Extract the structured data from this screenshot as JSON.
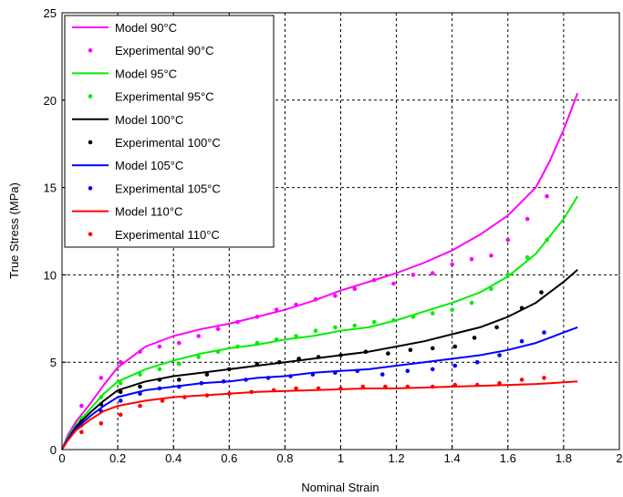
{
  "chart_data": {
    "type": "line",
    "title": "",
    "xlabel": "Nominal Strain",
    "ylabel": "True Stress (MPa)",
    "xlim": [
      0,
      2
    ],
    "ylim": [
      0,
      25
    ],
    "xticks": [
      "0",
      "0.2",
      "0.4",
      "0.6",
      "0.8",
      "1",
      "1.2",
      "1.4",
      "1.6",
      "1.8",
      "2"
    ],
    "yticks": [
      "0",
      "5",
      "10",
      "15",
      "20",
      "25"
    ],
    "grid": true,
    "legend_position": "top-left",
    "series": [
      {
        "name": "Model 90°C",
        "kind": "line",
        "color": "#ff00ff",
        "x": [
          0,
          0.02,
          0.05,
          0.1,
          0.15,
          0.2,
          0.3,
          0.4,
          0.5,
          0.6,
          0.7,
          0.8,
          0.9,
          1.0,
          1.1,
          1.2,
          1.3,
          1.4,
          1.5,
          1.6,
          1.7,
          1.75,
          1.8,
          1.85
        ],
        "y": [
          0,
          0.8,
          1.6,
          2.6,
          3.7,
          4.7,
          5.9,
          6.5,
          6.9,
          7.2,
          7.6,
          8.0,
          8.5,
          9.1,
          9.6,
          10.1,
          10.7,
          11.4,
          12.3,
          13.4,
          15.0,
          16.5,
          18.3,
          20.4
        ]
      },
      {
        "name": "Experimental 90°C",
        "kind": "scatter",
        "color": "#ff00ff",
        "x": [
          0.07,
          0.14,
          0.21,
          0.28,
          0.35,
          0.42,
          0.49,
          0.56,
          0.63,
          0.7,
          0.77,
          0.84,
          0.91,
          0.98,
          1.05,
          1.12,
          1.19,
          1.26,
          1.33,
          1.4,
          1.47,
          1.54,
          1.6,
          1.67,
          1.74
        ],
        "y": [
          2.5,
          4.1,
          5.0,
          5.6,
          5.9,
          6.1,
          6.5,
          6.9,
          7.3,
          7.6,
          8.0,
          8.3,
          8.6,
          8.8,
          9.2,
          9.7,
          9.5,
          10.0,
          10.1,
          10.6,
          10.9,
          11.1,
          12.0,
          13.2,
          14.5
        ]
      },
      {
        "name": "Model 95°C",
        "kind": "line",
        "color": "#00ee00",
        "x": [
          0,
          0.02,
          0.05,
          0.1,
          0.15,
          0.2,
          0.3,
          0.4,
          0.5,
          0.6,
          0.7,
          0.8,
          0.9,
          1.0,
          1.1,
          1.2,
          1.3,
          1.4,
          1.5,
          1.6,
          1.7,
          1.75,
          1.8,
          1.85
        ],
        "y": [
          0,
          0.7,
          1.4,
          2.3,
          3.2,
          3.9,
          4.6,
          5.1,
          5.5,
          5.8,
          6.0,
          6.3,
          6.5,
          6.8,
          7.0,
          7.4,
          7.9,
          8.4,
          9.0,
          9.9,
          11.2,
          12.2,
          13.2,
          14.5
        ]
      },
      {
        "name": "Experimental 95°C",
        "kind": "scatter",
        "color": "#00ee00",
        "x": [
          0.07,
          0.14,
          0.21,
          0.28,
          0.35,
          0.42,
          0.49,
          0.56,
          0.63,
          0.7,
          0.77,
          0.84,
          0.91,
          0.98,
          1.05,
          1.12,
          1.19,
          1.26,
          1.33,
          1.4,
          1.47,
          1.54,
          1.6,
          1.67,
          1.74
        ],
        "y": [
          1.8,
          3.0,
          3.8,
          4.3,
          4.6,
          4.9,
          5.3,
          5.6,
          5.9,
          6.1,
          6.3,
          6.5,
          6.8,
          7.0,
          7.1,
          7.3,
          7.4,
          7.6,
          7.8,
          8.0,
          8.4,
          9.2,
          10.0,
          11.0,
          12.0
        ]
      },
      {
        "name": "Model 100°C",
        "kind": "line",
        "color": "#000000",
        "x": [
          0,
          0.02,
          0.05,
          0.1,
          0.15,
          0.2,
          0.3,
          0.4,
          0.5,
          0.6,
          0.7,
          0.8,
          0.9,
          1.0,
          1.1,
          1.2,
          1.3,
          1.4,
          1.5,
          1.6,
          1.7,
          1.75,
          1.8,
          1.85
        ],
        "y": [
          0,
          0.6,
          1.3,
          2.1,
          2.8,
          3.4,
          3.9,
          4.2,
          4.4,
          4.6,
          4.8,
          5.0,
          5.2,
          5.4,
          5.6,
          5.9,
          6.2,
          6.6,
          7.0,
          7.6,
          8.4,
          9.0,
          9.6,
          10.3
        ]
      },
      {
        "name": "Experimental 100°C",
        "kind": "scatter",
        "color": "#000000",
        "x": [
          0.07,
          0.14,
          0.21,
          0.28,
          0.35,
          0.42,
          0.52,
          0.6,
          0.7,
          0.78,
          0.85,
          0.92,
          1.0,
          1.09,
          1.17,
          1.25,
          1.33,
          1.41,
          1.48,
          1.56,
          1.65,
          1.72
        ],
        "y": [
          1.6,
          2.6,
          3.3,
          3.6,
          4.0,
          4.0,
          4.3,
          4.6,
          4.9,
          5.0,
          5.2,
          5.3,
          5.4,
          5.6,
          5.5,
          5.7,
          5.8,
          5.9,
          6.4,
          7.0,
          8.1,
          9.0
        ]
      },
      {
        "name": "Model 105°C",
        "kind": "line",
        "color": "#0000ff",
        "x": [
          0,
          0.02,
          0.05,
          0.1,
          0.15,
          0.2,
          0.3,
          0.4,
          0.5,
          0.6,
          0.7,
          0.8,
          0.9,
          1.0,
          1.1,
          1.2,
          1.3,
          1.4,
          1.5,
          1.6,
          1.7,
          1.75,
          1.8,
          1.85
        ],
        "y": [
          0,
          0.6,
          1.2,
          1.9,
          2.5,
          3.0,
          3.4,
          3.6,
          3.8,
          3.9,
          4.1,
          4.2,
          4.4,
          4.5,
          4.6,
          4.8,
          5.0,
          5.2,
          5.4,
          5.7,
          6.1,
          6.4,
          6.7,
          7.0
        ]
      },
      {
        "name": "Experimental 105°C",
        "kind": "scatter",
        "color": "#0000ff",
        "x": [
          0.07,
          0.14,
          0.21,
          0.28,
          0.35,
          0.42,
          0.5,
          0.58,
          0.66,
          0.74,
          0.82,
          0.9,
          0.98,
          1.06,
          1.15,
          1.24,
          1.33,
          1.41,
          1.49,
          1.57,
          1.65,
          1.73
        ],
        "y": [
          1.4,
          2.2,
          2.8,
          3.2,
          3.5,
          3.6,
          3.8,
          3.9,
          4.0,
          4.1,
          4.2,
          4.3,
          4.4,
          4.5,
          4.3,
          4.5,
          4.6,
          4.8,
          5.0,
          5.4,
          6.2,
          6.7
        ]
      },
      {
        "name": "Model 110°C",
        "kind": "line",
        "color": "#ff0000",
        "x": [
          0,
          0.02,
          0.05,
          0.1,
          0.15,
          0.2,
          0.3,
          0.4,
          0.5,
          0.6,
          0.7,
          0.8,
          0.9,
          1.0,
          1.1,
          1.2,
          1.3,
          1.4,
          1.5,
          1.6,
          1.7,
          1.75,
          1.8,
          1.85
        ],
        "y": [
          0,
          0.5,
          1.1,
          1.7,
          2.2,
          2.5,
          2.8,
          3.0,
          3.1,
          3.2,
          3.3,
          3.35,
          3.4,
          3.45,
          3.5,
          3.5,
          3.55,
          3.6,
          3.65,
          3.7,
          3.75,
          3.8,
          3.85,
          3.9
        ]
      },
      {
        "name": "Experimental 110°C",
        "kind": "scatter",
        "color": "#ff0000",
        "x": [
          0.07,
          0.14,
          0.21,
          0.28,
          0.36,
          0.44,
          0.52,
          0.6,
          0.68,
          0.76,
          0.84,
          0.92,
          1.0,
          1.08,
          1.16,
          1.24,
          1.33,
          1.41,
          1.49,
          1.57,
          1.65,
          1.73
        ],
        "y": [
          1.0,
          1.5,
          2.0,
          2.5,
          2.8,
          3.0,
          3.1,
          3.2,
          3.3,
          3.4,
          3.5,
          3.5,
          3.5,
          3.6,
          3.6,
          3.6,
          3.6,
          3.7,
          3.7,
          3.8,
          4.0,
          4.1
        ]
      }
    ]
  }
}
